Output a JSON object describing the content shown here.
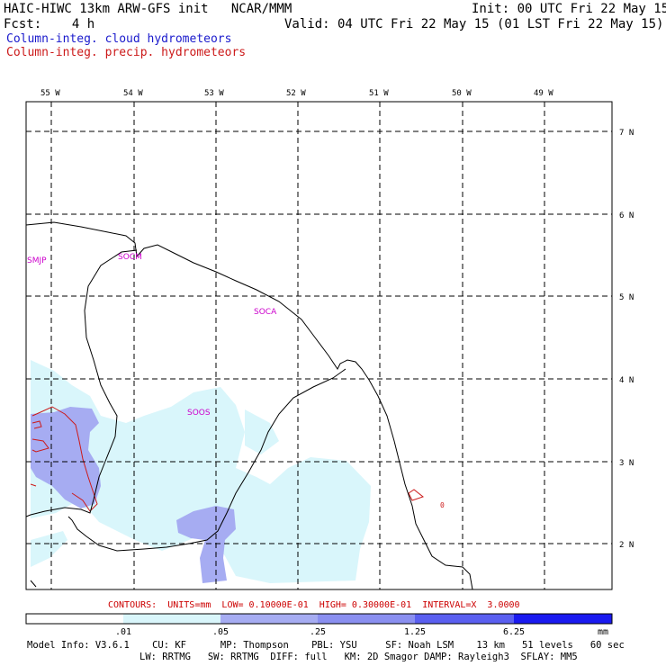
{
  "header": {
    "title": "HAIC-HIWC 13km ARW-GFS init   NCAR/MMM",
    "init": "Init: 00 UTC Fri 22 May 15",
    "fcst": "Fcst:    4 h",
    "valid": "Valid: 04 UTC Fri 22 May 15 (01 LST Fri 22 May 15)",
    "field1": "Column-integ. cloud hydrometeors",
    "field2": "Column-integ. precip. hydrometeors"
  },
  "colors": {
    "field1": "#1a1acc",
    "field2": "#cc1a1a",
    "shade1": "#d9f6fb",
    "shade2": "#a6acf2",
    "shade3": "#6a6ff0",
    "shade4": "#1a1af0",
    "label_magenta": "#cc00cc"
  },
  "map": {
    "lon_labels": [
      "55 W",
      "54 W",
      "53 W",
      "52 W",
      "51 W",
      "50 W",
      "49 W"
    ],
    "lat_labels": [
      "7 N",
      "6 N",
      "5 N",
      "4 N",
      "3 N",
      "2 N"
    ],
    "place_labels": [
      "SMJP",
      "SOCM",
      "SOCA",
      "SOOS"
    ],
    "contour_label": "0"
  },
  "contour_info": "CONTOURS:  UNITS=mm  LOW= 0.10000E-01  HIGH= 0.30000E-01  INTERVAL=X  3.0000",
  "colorbar": {
    "ticks": [
      ".01",
      ".05",
      ".25",
      "1.25",
      "6.25"
    ],
    "units": "mm"
  },
  "model_info": {
    "line1": "Model Info: V3.6.1    CU: KF      MP: Thompson    PBL: YSU     SF: Noah LSM    13 km   51 levels   60 sec",
    "line2": "LW: RRTMG   SW: RRTMG  DIFF: full   KM: 2D Smagor DAMP: Rayleigh3  SFLAY: MM5"
  }
}
